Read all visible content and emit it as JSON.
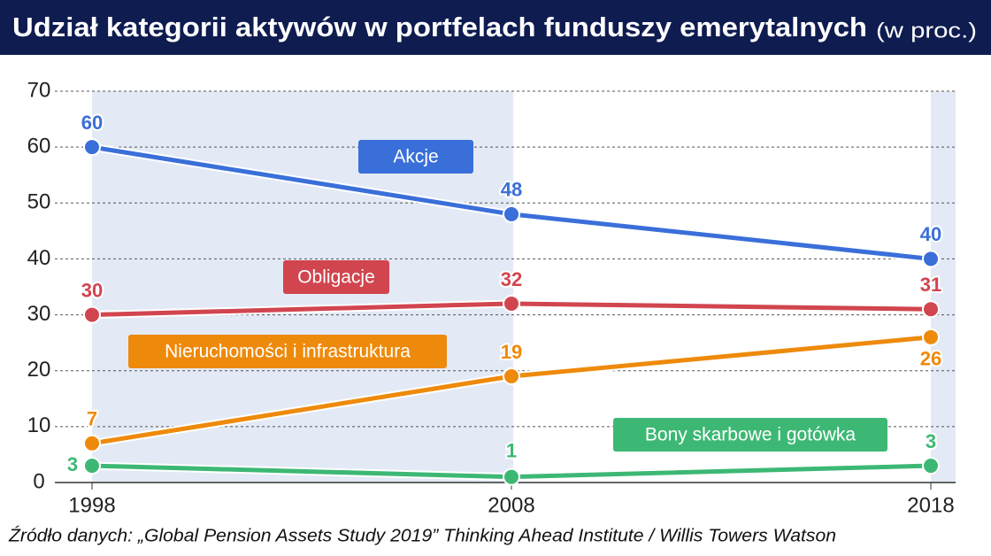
{
  "chart_data": {
    "type": "line",
    "title": "Udział kategorii aktywów w portfelach funduszy emerytalnych",
    "subtitle": "(w proc.)",
    "categories": [
      "1998",
      "2008",
      "2018"
    ],
    "series": [
      {
        "name": "Akcje",
        "color": "#3a6fd9",
        "values": [
          60,
          48,
          40
        ]
      },
      {
        "name": "Obligacje",
        "color": "#d1454f",
        "values": [
          30,
          32,
          31
        ]
      },
      {
        "name": "Nieruchomości i infrastruktura",
        "color": "#ee8a0b",
        "values": [
          7,
          19,
          26
        ]
      },
      {
        "name": "Bony skarbowe i gotówka",
        "color": "#3db874",
        "values": [
          3,
          1,
          3
        ]
      }
    ],
    "ylim": [
      0,
      70
    ],
    "yticks": [
      0,
      10,
      20,
      30,
      40,
      50,
      60,
      70
    ],
    "grid": true,
    "source": "Źródło danych: „Global Pension Assets Study 2019” Thinking Ahead Institute / Willis Towers Watson"
  }
}
